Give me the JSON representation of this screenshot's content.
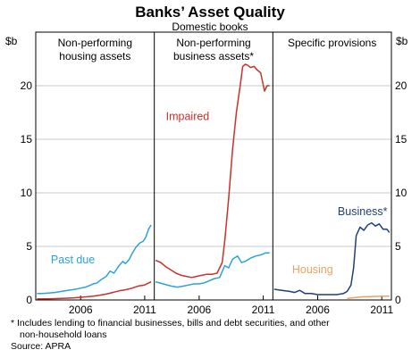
{
  "chart_data": {
    "type": "line",
    "title": "Banks’ Asset Quality",
    "subtitle": "Domestic books",
    "y_unit_left": "$b",
    "y_unit_right": "$b",
    "ylim": [
      0,
      25
    ],
    "yticks": [
      0,
      5,
      10,
      15,
      20
    ],
    "yticks_right": [
      0,
      5,
      10,
      15,
      20
    ],
    "panels": [
      {
        "title_lines": [
          "Non-performing",
          "housing assets"
        ],
        "xlim": [
          2002.5,
          2011.75
        ],
        "xticks": [
          2006,
          2011
        ],
        "series": [
          {
            "name": "Past due",
            "color": "#2ba2dc",
            "x": [
              2002.6,
              2003.0,
              2003.5,
              2004.0,
              2004.5,
              2005.0,
              2005.3,
              2005.6,
              2006.0,
              2006.4,
              2006.8,
              2007.0,
              2007.3,
              2007.6,
              2008.0,
              2008.3,
              2008.6,
              2009.0,
              2009.3,
              2009.5,
              2009.8,
              2010.0,
              2010.3,
              2010.6,
              2010.9,
              2011.1,
              2011.3,
              2011.5
            ],
            "y": [
              0.6,
              0.6,
              0.65,
              0.7,
              0.8,
              0.9,
              0.95,
              1.0,
              1.1,
              1.2,
              1.4,
              1.5,
              1.6,
              1.9,
              2.2,
              2.7,
              2.5,
              3.2,
              3.6,
              3.4,
              3.8,
              4.3,
              4.9,
              5.3,
              5.5,
              5.9,
              6.6,
              7.0
            ]
          },
          {
            "name": "",
            "color": "#c8322b",
            "x": [
              2002.6,
              2003.5,
              2004.5,
              2005.5,
              2006.0,
              2006.5,
              2007.0,
              2007.5,
              2008.0,
              2008.5,
              2009.0,
              2009.5,
              2010.0,
              2010.5,
              2011.0,
              2011.5
            ],
            "y": [
              0.1,
              0.1,
              0.15,
              0.2,
              0.25,
              0.3,
              0.35,
              0.45,
              0.55,
              0.7,
              0.85,
              0.95,
              1.1,
              1.3,
              1.4,
              1.7
            ]
          }
        ]
      },
      {
        "title_lines": [
          "Non-performing",
          "business assets*"
        ],
        "xlim": [
          2002.5,
          2011.75
        ],
        "xticks": [
          2006,
          2011
        ],
        "series": [
          {
            "name": "Impaired",
            "color": "#c8322b",
            "x": [
              2002.6,
              2003.0,
              2003.4,
              2003.8,
              2004.2,
              2004.6,
              2005.0,
              2005.4,
              2005.8,
              2006.2,
              2006.6,
              2007.0,
              2007.4,
              2007.8,
              2008.0,
              2008.3,
              2008.6,
              2008.9,
              2009.2,
              2009.4,
              2009.6,
              2009.8,
              2010.0,
              2010.3,
              2010.5,
              2010.8,
              2011.1,
              2011.3,
              2011.5
            ],
            "y": [
              3.7,
              3.5,
              3.1,
              2.8,
              2.5,
              2.3,
              2.2,
              2.1,
              2.2,
              2.3,
              2.4,
              2.4,
              2.5,
              3.5,
              5.5,
              9.5,
              14.0,
              17.5,
              20.0,
              21.8,
              22.0,
              21.9,
              21.7,
              21.8,
              21.5,
              21.2,
              19.5,
              20.0,
              20.0
            ]
          },
          {
            "name": "",
            "color": "#2ba2dc",
            "x": [
              2002.6,
              2003.2,
              2003.8,
              2004.3,
              2004.8,
              2005.2,
              2005.6,
              2006.0,
              2006.4,
              2006.8,
              2007.2,
              2007.6,
              2008.0,
              2008.3,
              2008.6,
              2009.0,
              2009.3,
              2009.6,
              2010.0,
              2010.4,
              2010.8,
              2011.2,
              2011.5
            ],
            "y": [
              1.7,
              1.5,
              1.3,
              1.2,
              1.3,
              1.4,
              1.5,
              1.5,
              1.6,
              1.8,
              2.0,
              2.1,
              3.2,
              3.0,
              3.8,
              4.1,
              3.5,
              3.6,
              3.9,
              4.1,
              4.2,
              4.4,
              4.4
            ]
          }
        ]
      },
      {
        "title_lines": [
          "Specific provisions"
        ],
        "xlim": [
          2002.5,
          2011.75
        ],
        "xticks": [
          2006,
          2011
        ],
        "series": [
          {
            "name": "Business*",
            "color": "#1f3f7a",
            "x": [
              2002.6,
              2003.2,
              2003.8,
              2004.2,
              2004.6,
              2005.0,
              2005.5,
              2006.0,
              2006.5,
              2007.0,
              2007.5,
              2008.0,
              2008.3,
              2008.6,
              2008.8,
              2009.0,
              2009.3,
              2009.6,
              2009.9,
              2010.2,
              2010.5,
              2010.8,
              2011.1,
              2011.4,
              2011.6
            ],
            "y": [
              1.0,
              0.9,
              0.8,
              0.7,
              0.9,
              0.6,
              0.6,
              0.5,
              0.5,
              0.5,
              0.5,
              0.6,
              0.8,
              1.4,
              3.0,
              6.0,
              6.8,
              6.5,
              7.0,
              7.2,
              6.9,
              7.1,
              6.6,
              6.6,
              6.3
            ]
          },
          {
            "name": "Housing",
            "color": "#f0a060",
            "x": [
              2008.3,
              2008.7,
              2009.1,
              2009.6,
              2010.1,
              2010.6,
              2011.1,
              2011.6
            ],
            "y": [
              0.15,
              0.2,
              0.25,
              0.3,
              0.32,
              0.33,
              0.35,
              0.35
            ]
          }
        ]
      }
    ],
    "annotations": [
      {
        "panel": 0,
        "text": "Past due",
        "x": 2005.4,
        "y": 3.4
      },
      {
        "panel": 1,
        "text": "Impaired",
        "x": 2005.1,
        "y": 16.8
      },
      {
        "panel": 2,
        "text": "Business*",
        "x": 2009.5,
        "y": 7.9
      },
      {
        "panel": 2,
        "text": "Housing",
        "x": 2005.6,
        "y": 2.5
      }
    ]
  },
  "footnote_lines": [
    "*   Includes lending to financial businesses, bills and debt securities, and other",
    "non-household loans"
  ],
  "source": "Source: APRA"
}
